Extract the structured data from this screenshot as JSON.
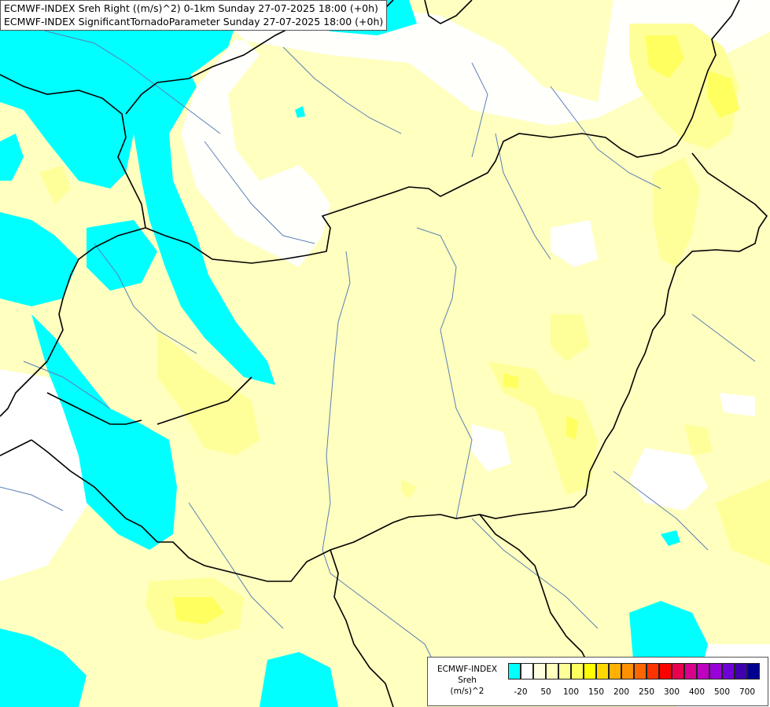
{
  "header": {
    "line1": "ECMWF-INDEX Sreh Right ((m/s)^2) 0-1km Sunday 27-07-2025 18:00 (+0h)",
    "line2": "ECMWF-INDEX SignificantTornadoParameter Sunday 27-07-2025 18:00 (+0h)"
  },
  "legend": {
    "line1": "ECMWF-INDEX",
    "line2": "Sreh",
    "line3": "(m/s)^2",
    "colors": [
      "#00ffff",
      "#ffffff",
      "#ffffe0",
      "#ffffc0",
      "#ffff9a",
      "#ffff60",
      "#ffff00",
      "#ffd700",
      "#ffb000",
      "#ff9000",
      "#ff6600",
      "#ff3300",
      "#ff0000",
      "#e8004e",
      "#d8008c",
      "#c000c0",
      "#9a00d8",
      "#7000d8",
      "#4000b0",
      "#000090"
    ],
    "ticks": [
      "-20",
      "50",
      "100",
      "150",
      "200",
      "250",
      "300",
      "400",
      "500",
      "700"
    ]
  },
  "map": {
    "colors": {
      "cyan": "#00ffff",
      "pale": "#ffffc0",
      "light": "#ffff9a",
      "yellow": "#ffff60",
      "bright": "#ffff00",
      "border": "#000000",
      "river": "#5a7fb5"
    }
  }
}
